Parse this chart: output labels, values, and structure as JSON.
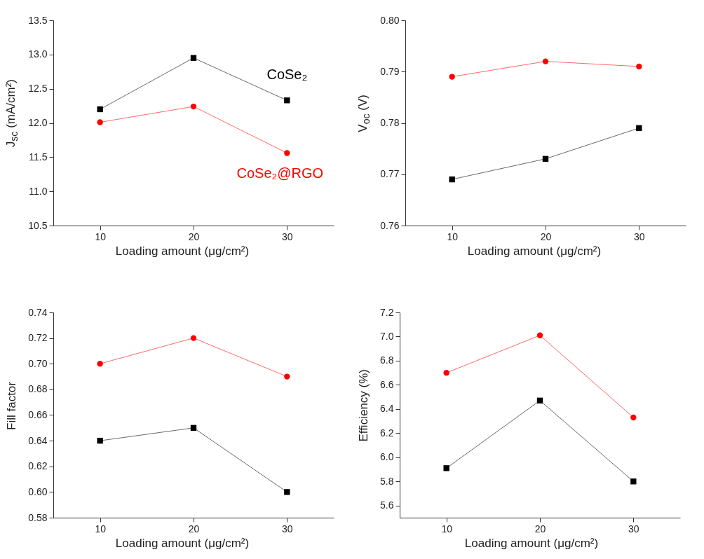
{
  "chart_data": [
    {
      "type": "line",
      "xlabel": "Loading amount (μg/cm²)",
      "ylabel": "J$_{sc}$ (mA/cm²)",
      "x": [
        10,
        20,
        30
      ],
      "xlim": [
        5,
        35
      ],
      "xticks": [
        10,
        20,
        30
      ],
      "ylim": [
        10.5,
        13.5
      ],
      "yticks": [
        10.5,
        {
          "value": 11,
          "label": "11.0"
        },
        11.5,
        {
          "value": 12,
          "label": "12.0"
        },
        12.5,
        {
          "value": 13,
          "label": "13.0"
        },
        13.5
      ],
      "series": [
        {
          "name": "CoSe₂",
          "color": "#000000",
          "marker": "square",
          "values": [
            12.2,
            12.95,
            12.33
          ]
        },
        {
          "name": "CoSe₂@RGO",
          "color": "#ff0000",
          "marker": "circle",
          "values": [
            12.01,
            12.24,
            11.56
          ]
        }
      ]
    },
    {
      "type": "line",
      "xlabel": "Loading amount (μg/cm²)",
      "ylabel": "V$_{oc}$ (V)",
      "x": [
        10,
        20,
        30
      ],
      "xlim": [
        5,
        35
      ],
      "xticks": [
        10,
        20,
        30
      ],
      "ylim": [
        0.76,
        0.8
      ],
      "yticks": [
        0.76,
        0.77,
        0.78,
        0.79,
        {
          "value": 0.8,
          "label": "0.80"
        }
      ],
      "series": [
        {
          "color": "#000000",
          "marker": "square",
          "values": [
            0.769,
            0.773,
            0.779
          ]
        },
        {
          "color": "#ff0000",
          "marker": "circle",
          "values": [
            0.789,
            0.792,
            0.791
          ]
        }
      ]
    },
    {
      "type": "line",
      "xlabel": "Loading amount (μg/cm²)",
      "ylabel": "Fill factor",
      "x": [
        10,
        20,
        30
      ],
      "xlim": [
        5,
        35
      ],
      "xticks": [
        10,
        20,
        30
      ],
      "ylim": [
        0.58,
        0.74
      ],
      "yticks": [
        0.58,
        {
          "value": 0.6,
          "label": "0.60"
        },
        0.62,
        0.64,
        0.66,
        0.68,
        {
          "value": 0.7,
          "label": "0.70"
        },
        0.72,
        0.74
      ],
      "series": [
        {
          "color": "#000000",
          "marker": "square",
          "values": [
            0.64,
            0.65,
            0.6
          ]
        },
        {
          "color": "#ff0000",
          "marker": "circle",
          "values": [
            0.7,
            0.72,
            0.69
          ]
        }
      ]
    },
    {
      "type": "line",
      "xlabel": "Loading amount (μg/cm²)",
      "ylabel": "Efficiency (%)",
      "x": [
        10,
        20,
        30
      ],
      "xlim": [
        5,
        35
      ],
      "xticks": [
        10,
        20,
        30
      ],
      "ylim": [
        5.5,
        7.2
      ],
      "yticks": [
        5.6,
        5.8,
        {
          "value": 6,
          "label": "6.0"
        },
        6.2,
        6.4,
        6.6,
        6.8,
        {
          "value": 7,
          "label": "7.0"
        },
        7.2
      ],
      "series": [
        {
          "color": "#000000",
          "marker": "square",
          "values": [
            5.91,
            6.47,
            5.8
          ]
        },
        {
          "color": "#ff0000",
          "marker": "circle",
          "values": [
            6.7,
            7.01,
            6.33
          ]
        }
      ]
    }
  ]
}
